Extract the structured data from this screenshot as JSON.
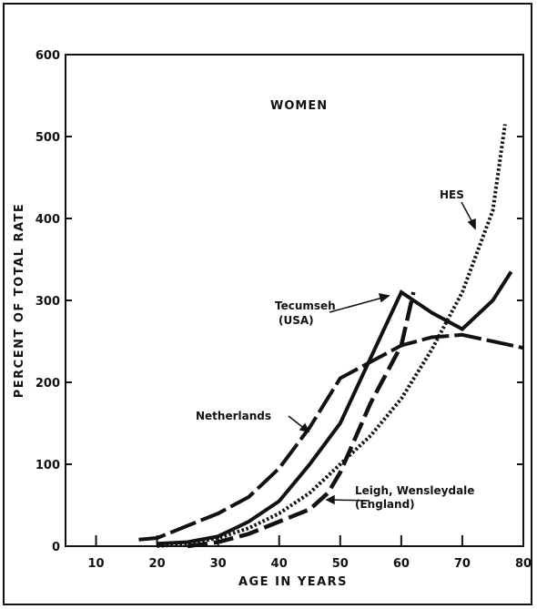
{
  "chart_data": {
    "type": "line",
    "title": "WOMEN",
    "xlabel": "AGE IN YEARS",
    "ylabel": "PERCENT OF TOTAL RATE",
    "xlim": [
      5,
      80
    ],
    "ylim": [
      0,
      600
    ],
    "x_ticks": [
      "10",
      "20",
      "30",
      "40",
      "50",
      "60",
      "70",
      "80"
    ],
    "y_ticks": [
      "0",
      "100",
      "200",
      "300",
      "400",
      "500",
      "600"
    ],
    "grid": false,
    "series": [
      {
        "name": "Netherlands",
        "style": "long-dash",
        "points": [
          [
            17,
            8
          ],
          [
            20,
            10
          ],
          [
            25,
            25
          ],
          [
            30,
            40
          ],
          [
            35,
            60
          ],
          [
            40,
            95
          ],
          [
            45,
            145
          ],
          [
            50,
            205
          ],
          [
            55,
            225
          ],
          [
            60,
            245
          ],
          [
            65,
            255
          ],
          [
            70,
            258
          ],
          [
            75,
            250
          ],
          [
            80,
            242
          ]
        ]
      },
      {
        "name": "Tecumseh (USA)",
        "style": "solid",
        "points": [
          [
            20,
            3
          ],
          [
            25,
            5
          ],
          [
            30,
            12
          ],
          [
            35,
            30
          ],
          [
            40,
            55
          ],
          [
            45,
            100
          ],
          [
            50,
            150
          ],
          [
            55,
            230
          ],
          [
            60,
            310
          ],
          [
            65,
            285
          ],
          [
            70,
            265
          ],
          [
            75,
            300
          ],
          [
            78,
            335
          ]
        ]
      },
      {
        "name": "HES",
        "style": "dotted",
        "points": [
          [
            20,
            0
          ],
          [
            25,
            3
          ],
          [
            30,
            10
          ],
          [
            35,
            22
          ],
          [
            40,
            40
          ],
          [
            45,
            65
          ],
          [
            50,
            100
          ],
          [
            55,
            135
          ],
          [
            60,
            180
          ],
          [
            65,
            240
          ],
          [
            70,
            310
          ],
          [
            75,
            410
          ],
          [
            77,
            515
          ]
        ]
      },
      {
        "name": "Leigh, Wensleydale (England)",
        "style": "dash",
        "points": [
          [
            25,
            0
          ],
          [
            30,
            5
          ],
          [
            35,
            15
          ],
          [
            40,
            30
          ],
          [
            45,
            45
          ],
          [
            48,
            65
          ],
          [
            50,
            90
          ],
          [
            55,
            175
          ],
          [
            60,
            245
          ],
          [
            62,
            310
          ]
        ]
      }
    ],
    "annotations": [
      {
        "lines": [
          "Tecumseh",
          "(USA)"
        ]
      },
      {
        "lines": [
          "Netherlands"
        ]
      },
      {
        "lines": [
          "HES"
        ]
      },
      {
        "lines": [
          "Leigh, Wensleydale",
          "(England)"
        ]
      }
    ]
  }
}
